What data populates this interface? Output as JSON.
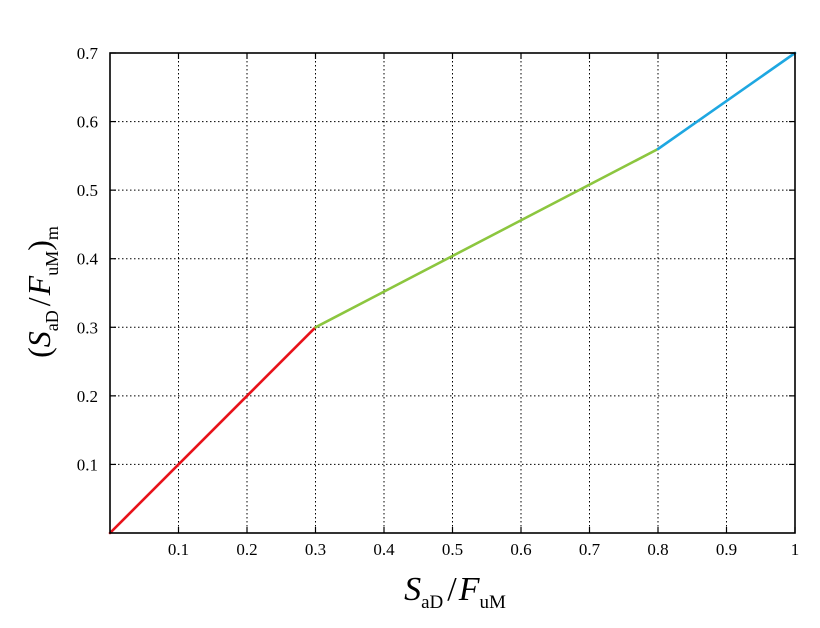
{
  "chart_data": {
    "type": "line",
    "xlabel": {
      "base": "S",
      "sub": "aD",
      "sep": "/",
      "base2": "F",
      "sub2": "uM"
    },
    "ylabel": {
      "open": "(",
      "base": "S",
      "sub": "aD",
      "sep": "/",
      "base2": "F",
      "sub2": "uM",
      "close": ")",
      "sub3": "m"
    },
    "xlim": [
      0,
      1
    ],
    "ylim": [
      0,
      0.7
    ],
    "x_ticks": [
      0.1,
      0.2,
      0.3,
      0.4,
      0.5,
      0.6,
      0.7,
      0.8,
      0.9,
      1
    ],
    "x_tick_labels": [
      "0.1",
      "0.2",
      "0.3",
      "0.4",
      "0.5",
      "0.6",
      "0.7",
      "0.8",
      "0.9",
      "1"
    ],
    "y_ticks": [
      0.1,
      0.2,
      0.3,
      0.4,
      0.5,
      0.6,
      0.7
    ],
    "y_tick_labels": [
      "0.1",
      "0.2",
      "0.3",
      "0.4",
      "0.5",
      "0.6",
      "0.7"
    ],
    "grid": true,
    "series": [
      {
        "color": "#e8121a",
        "x": [
          0,
          0.3
        ],
        "y": [
          0,
          0.3
        ]
      },
      {
        "color": "#8cc63f",
        "x": [
          0.3,
          0.8
        ],
        "y": [
          0.3,
          0.56
        ]
      },
      {
        "color": "#1ea7e1",
        "x": [
          0.8,
          1.0
        ],
        "y": [
          0.56,
          0.7
        ]
      }
    ]
  }
}
